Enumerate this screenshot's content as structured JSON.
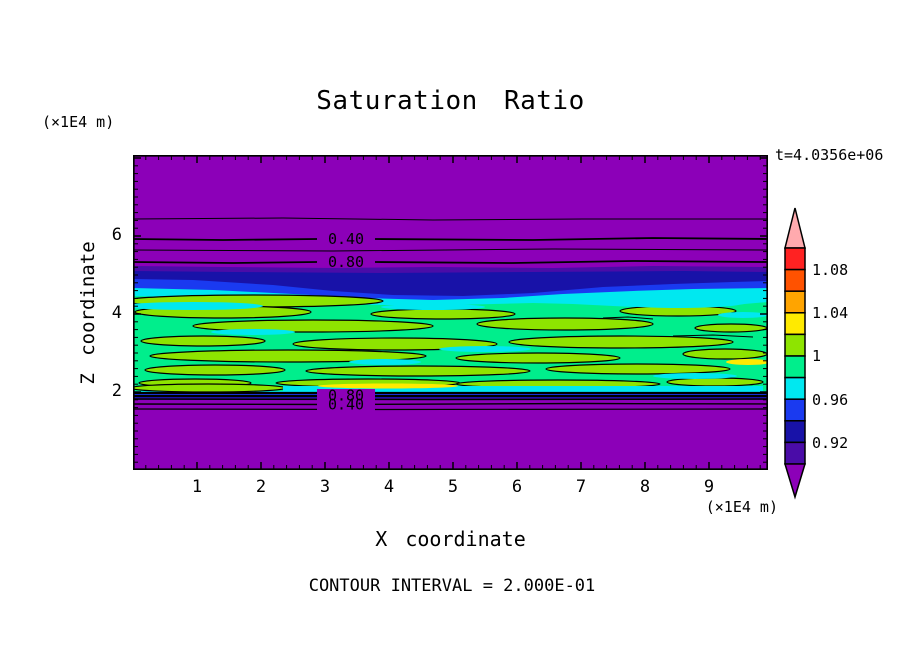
{
  "chart_data": {
    "type": "heatmap",
    "variant": "filled-contour-plot",
    "title": "Saturation Ratio",
    "time_label": "t=4.0356e+06",
    "xlabel": "X coordinate",
    "ylabel": "Z coordinate",
    "x_axis_unit": "(×1E4 m)",
    "y_axis_unit": "(×1E4 m)",
    "x_ticks": [
      "1",
      "2",
      "3",
      "4",
      "5",
      "6",
      "7",
      "8",
      "9"
    ],
    "y_ticks": [
      "6",
      "4",
      "2"
    ],
    "xlim": [
      0,
      9.9
    ],
    "ylim": [
      0,
      8.1
    ],
    "grid": false,
    "contour_interval_label": "CONTOUR INTERVAL = 2.000E-01",
    "contour_interval": 0.2,
    "contour_labels": [
      {
        "value": "0.40",
        "x": 3.35,
        "z": 5.85
      },
      {
        "value": "0.80",
        "x": 3.35,
        "z": 5.31
      },
      {
        "value": "0.80",
        "x": 3.35,
        "z": 1.92
      },
      {
        "value": "0.40",
        "x": 3.35,
        "z": 1.69
      }
    ],
    "colorbar": {
      "tick_labels": [
        "1.08",
        "1.04",
        "1",
        "0.96",
        "0.92"
      ],
      "tick_values": [
        1.08,
        1.04,
        1.0,
        0.96,
        0.92
      ],
      "levels": [
        0.9,
        0.92,
        0.94,
        0.96,
        0.98,
        1.0,
        1.02,
        1.04,
        1.06,
        1.08,
        1.1
      ],
      "colors_bottom_to_top": [
        "#4A0CA8",
        "#1812A8",
        "#1A3AF0",
        "#00E8F0",
        "#00EE8C",
        "#8EE400",
        "#FFEA00",
        "#FFA400",
        "#FF5200",
        "#FF2222"
      ],
      "under_color": "#8C00B8",
      "over_color": "#FFAAAE"
    },
    "field_summary": {
      "description": "Horizontally stratified saturation-ratio field; value rises from <0.2 at top, through contour lines 0.20/0.40/0.60/0.80, into a blue-cyan transition near z≈5, a broad green band (≈0.96–1.02) with chartreuse streaks outlined by the 1.0 contour between z≈2 and z≈4.8, then drops sharply back below 0.2 beneath z≈1.9",
      "z_bands": [
        {
          "z_range": [
            5.1,
            8.1
          ],
          "saturation": "< 0.90, decreasing to < 0.20 upward",
          "color": "purple (under-range)"
        },
        {
          "z_range": [
            4.6,
            5.1
          ],
          "saturation": "0.90 - 0.98",
          "color": "dark violet / navy / blue / cyan stripes"
        },
        {
          "z_range": [
            1.95,
            4.6
          ],
          "saturation": "0.96 - 1.02",
          "color": "spring green with chartreuse streaks, cyan and yellow patches"
        },
        {
          "z_range": [
            0.0,
            1.95
          ],
          "saturation": "< 0.90, decreasing below 0.20 downward",
          "color": "purple (under-range)"
        }
      ]
    }
  }
}
